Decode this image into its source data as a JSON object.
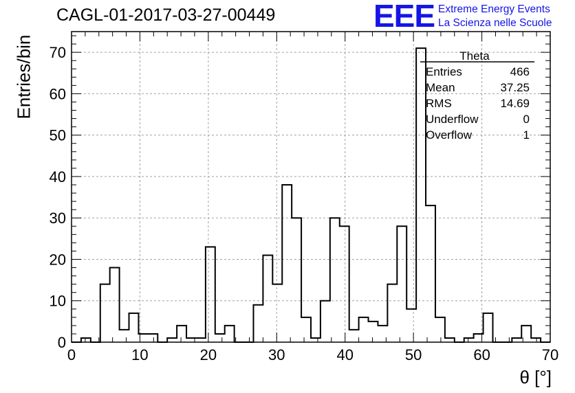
{
  "plot_title": "CAGL-01-2017-03-27-00449",
  "logo": {
    "mark": "EEE",
    "line1": "Extreme Energy Events",
    "line2": "La Scienza nelle Scuole"
  },
  "stats_box": {
    "title": "Theta",
    "rows": [
      {
        "label": "Entries",
        "value": "466"
      },
      {
        "label": "Mean",
        "value": "37.25"
      },
      {
        "label": "RMS",
        "value": "14.69"
      },
      {
        "label": "Underflow",
        "value": "0"
      },
      {
        "label": "Overflow",
        "value": "1"
      }
    ]
  },
  "chart_data": {
    "type": "bar",
    "histogram": true,
    "xlabel": "θ [°]",
    "ylabel": "Entries/bin",
    "xlim": [
      0,
      70
    ],
    "ylim": [
      0,
      75
    ],
    "grid": true,
    "bin_width": 1.4,
    "xticks": [
      0,
      10,
      20,
      30,
      40,
      50,
      60,
      70
    ],
    "yticks": [
      0,
      10,
      20,
      30,
      40,
      50,
      60,
      70
    ],
    "values": [
      0,
      1,
      0,
      14,
      18,
      3,
      7,
      2,
      2,
      0,
      1,
      4,
      1,
      1,
      23,
      2,
      4,
      0,
      0,
      9,
      21,
      14,
      38,
      30,
      6,
      1,
      10,
      30,
      28,
      3,
      6,
      5,
      4,
      14,
      28,
      8,
      71,
      33,
      6,
      1,
      0,
      1,
      2,
      7,
      0,
      0,
      1,
      4,
      1,
      0
    ],
    "color": "#000000",
    "grid_color": "#a0a0a0"
  }
}
